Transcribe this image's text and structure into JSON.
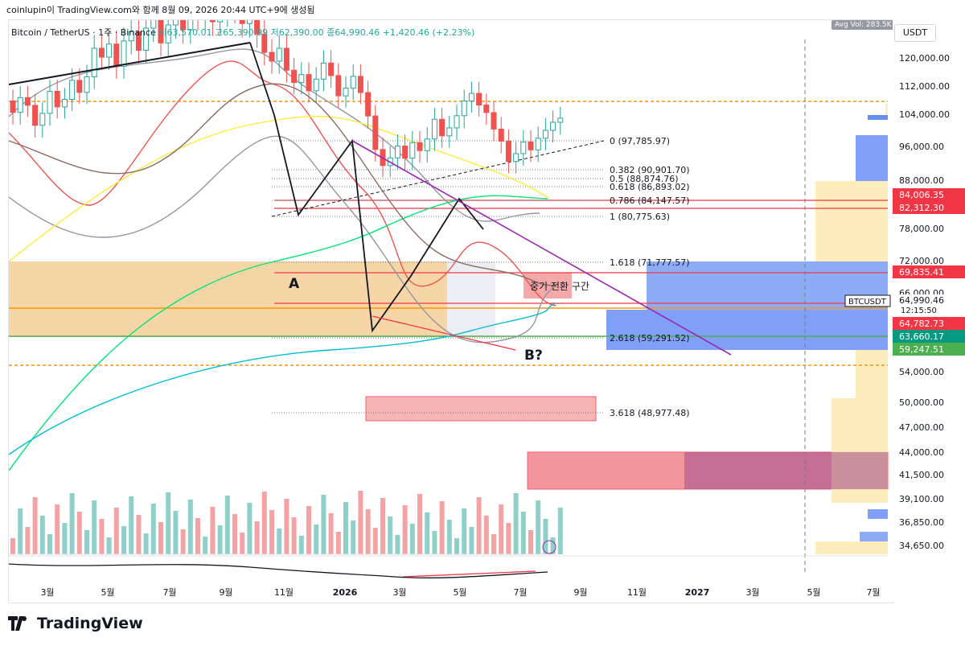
{
  "header": {
    "generated": "coinlupin이 TradingView.com와 함께 8월 09, 2026 20:44 UTC+9에 생성됨"
  },
  "legend": {
    "symbol": "Bitcoin / TetherUS · 1주 · Binance",
    "open": "시63,570.01",
    "high": "고65,390.99",
    "low": "저62,390.00",
    "close": "종64,990.46",
    "change": "+1,420.46 (+2.23%)"
  },
  "scale": {
    "currency": "USDT",
    "avg_vol": "Avg Vol: 283.5K"
  },
  "colors": {
    "up": "#26a69a",
    "down": "#ef5350",
    "accent": "#f7931a"
  },
  "chart_data": {
    "type": "candlestick",
    "title": "Bitcoin / TetherUS · 1주 · Binance",
    "ylim": [
      34650,
      125000
    ],
    "y_ticks": [
      "120,000.00",
      "112,000.00",
      "104,000.00",
      "96,000.00",
      "88,000.00",
      "84,000.00",
      "78,000.00",
      "72,000.00",
      "66,000.00",
      "59,000.00",
      "54,000.00",
      "50,000.00",
      "47,000.00",
      "44,000.00",
      "41,500.00",
      "39,100.00",
      "36,850.00",
      "34,650.00"
    ],
    "x_ticks": [
      "3월",
      "5월",
      "7월",
      "9월",
      "11월",
      "2026",
      "3월",
      "5월",
      "7월",
      "9월",
      "11월",
      "2027",
      "3월",
      "5월",
      "7월"
    ],
    "price_badges": [
      {
        "label": "84,006.35",
        "color": "#f23645"
      },
      {
        "label": "82,312.30",
        "color": "#f23645"
      },
      {
        "label": "69,835.41",
        "color": "#f23645"
      },
      {
        "label": "BTCUSDT",
        "sub": "64,990.46",
        "sub2": "12:15:50",
        "color": "#ffffff"
      },
      {
        "label": "64,782.73",
        "color": "#f23645"
      },
      {
        "label": "63,660.17",
        "color": "#089981"
      },
      {
        "label": "59,247.51",
        "color": "#4caf50"
      }
    ],
    "fib_levels": [
      {
        "label": "0 (97,785.97)"
      },
      {
        "label": "0.382 (90,901.70)"
      },
      {
        "label": "0.5 (88,874.76)"
      },
      {
        "label": "0.618 (86,893.02)"
      },
      {
        "label": "0.786 (84,147.57)"
      },
      {
        "label": "1 (80,775.63)"
      },
      {
        "label": "1.618 (71,777.57)"
      },
      {
        "label": "2.618 (59,291.52)"
      },
      {
        "label": "3.618 (48,977.48)"
      }
    ],
    "annotations": [
      "A",
      "B?",
      "중기 전환 구간"
    ]
  }
}
